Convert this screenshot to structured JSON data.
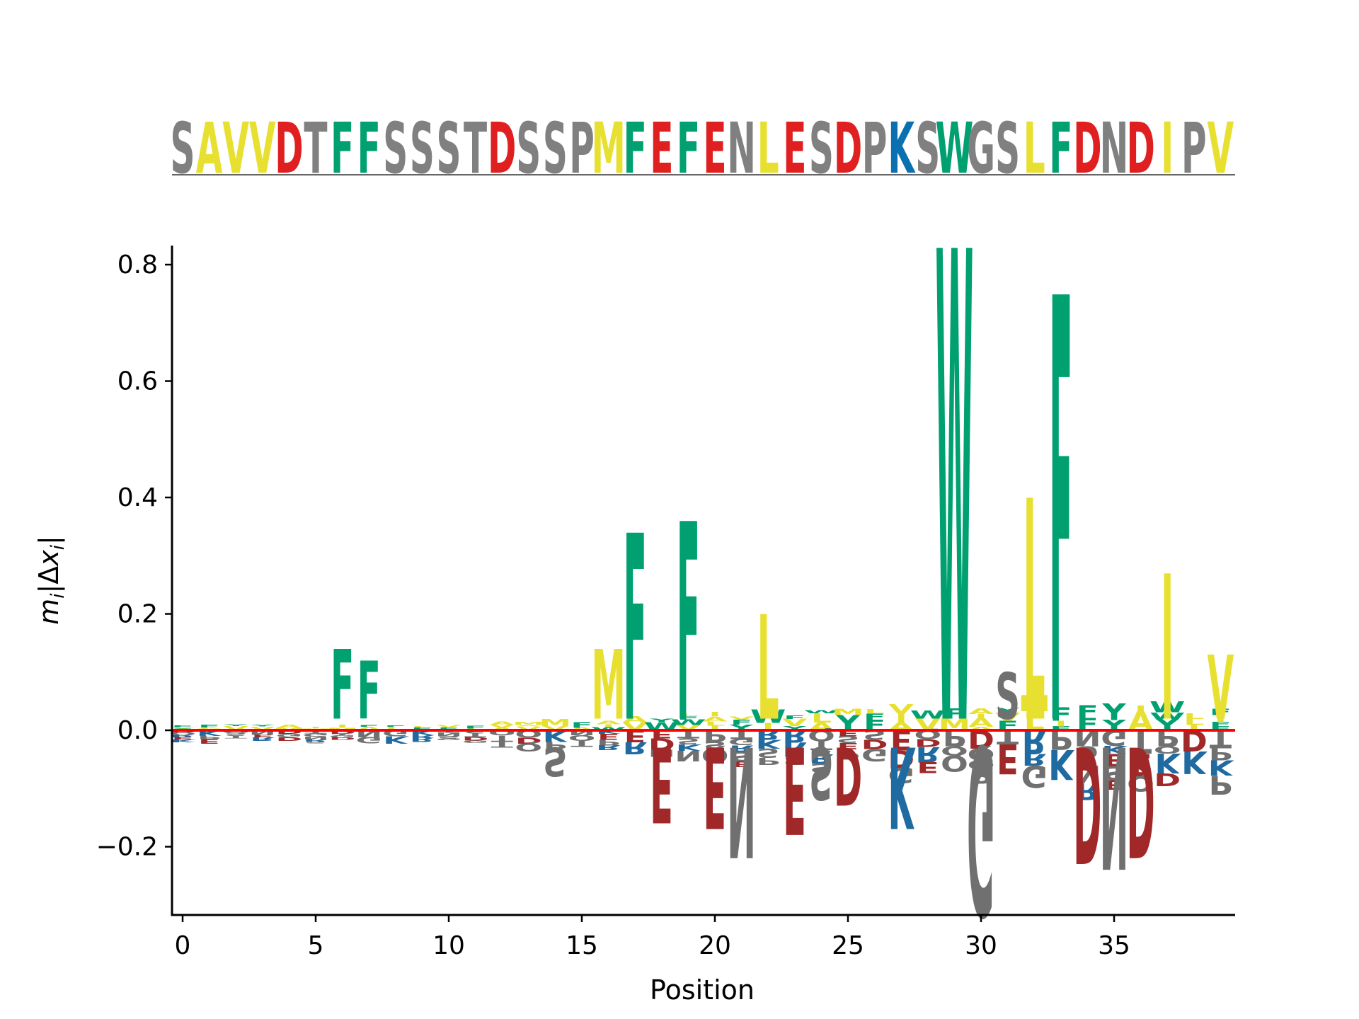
{
  "chart_data": {
    "type": "sequence-logo",
    "sequence": "SAVVDTFFSSSTDSSPMFEFENLESDPKSWGSLFDNDIPV",
    "xlabel": "Position",
    "ylabel": "m_i|Δx_i|",
    "xlim": [
      -0.5,
      39.5
    ],
    "ylim": [
      -0.32,
      0.83
    ],
    "xticks": [
      0,
      5,
      10,
      15,
      20,
      25,
      30,
      35
    ],
    "xtick_labels": [
      "0",
      "5",
      "10",
      "15",
      "20",
      "25",
      "30",
      "35"
    ],
    "yticks": [
      -0.2,
      0.0,
      0.2,
      0.4,
      0.6,
      0.8
    ],
    "ytick_labels": [
      "−0.2",
      "0.0",
      "0.2",
      "0.4",
      "0.6",
      "0.8"
    ],
    "baseline_color": "#ff0000",
    "colors": {
      "hydrophobic": "#e8e030",
      "aromatic": "#00a070",
      "acidic": "#e02020",
      "acidic_logo": "#a02828",
      "basic": "#0a70b0",
      "basic_logo": "#1f6aa0",
      "polar": "#808080",
      "polar_logo": "#707070"
    },
    "dominant_marks": [
      {
        "pos": 6,
        "letter": "F",
        "value": 0.14
      },
      {
        "pos": 7,
        "letter": "F",
        "value": 0.12
      },
      {
        "pos": 16,
        "letter": "M",
        "value": 0.14
      },
      {
        "pos": 17,
        "letter": "F",
        "value": 0.34
      },
      {
        "pos": 19,
        "letter": "F",
        "value": 0.36
      },
      {
        "pos": 22,
        "letter": "L",
        "value": 0.2
      },
      {
        "pos": 29,
        "letter": "W",
        "value": 0.83
      },
      {
        "pos": 31,
        "letter": "S",
        "value": 0.1
      },
      {
        "pos": 32,
        "letter": "L",
        "value": 0.4
      },
      {
        "pos": 33,
        "letter": "F",
        "value": 0.75
      },
      {
        "pos": 37,
        "letter": "I",
        "value": 0.27
      },
      {
        "pos": 39,
        "letter": "V",
        "value": 0.13
      },
      {
        "pos": 14,
        "letter": "S",
        "value": -0.08
      },
      {
        "pos": 18,
        "letter": "E",
        "value": -0.16
      },
      {
        "pos": 20,
        "letter": "E",
        "value": -0.17
      },
      {
        "pos": 21,
        "letter": "N",
        "value": -0.22
      },
      {
        "pos": 23,
        "letter": "E",
        "value": -0.18
      },
      {
        "pos": 24,
        "letter": "S",
        "value": -0.12
      },
      {
        "pos": 25,
        "letter": "D",
        "value": -0.13
      },
      {
        "pos": 27,
        "letter": "K",
        "value": -0.17
      },
      {
        "pos": 30,
        "letter": "G",
        "value": -0.32
      },
      {
        "pos": 34,
        "letter": "D",
        "value": -0.23
      },
      {
        "pos": 35,
        "letter": "N",
        "value": -0.24
      },
      {
        "pos": 36,
        "letter": "D",
        "value": -0.22
      }
    ]
  }
}
